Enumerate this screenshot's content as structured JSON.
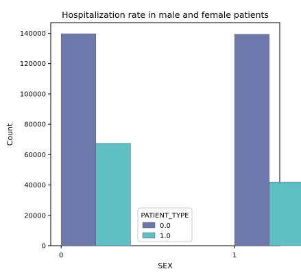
{
  "chart_data": {
    "type": "bar",
    "title": "Hospitalization rate in male and female patients",
    "xlabel": "SEX",
    "ylabel": "Count",
    "categories": [
      "0",
      "1"
    ],
    "ylim": [
      0,
      147000
    ],
    "yticks": [
      0,
      20000,
      40000,
      60000,
      80000,
      100000,
      120000,
      140000
    ],
    "ytick_labels": [
      "0",
      "20000",
      "40000",
      "60000",
      "80000",
      "100000",
      "120000",
      "140000"
    ],
    "grid": false,
    "legend": {
      "title": "PATIENT_TYPE",
      "placement": "bottom-center"
    },
    "series": [
      {
        "name": "0.0",
        "color": "#6e78aa",
        "values": [
          139700,
          139300
        ]
      },
      {
        "name": "1.0",
        "color": "#5fbfc3",
        "values": [
          67500,
          42000
        ]
      }
    ]
  }
}
